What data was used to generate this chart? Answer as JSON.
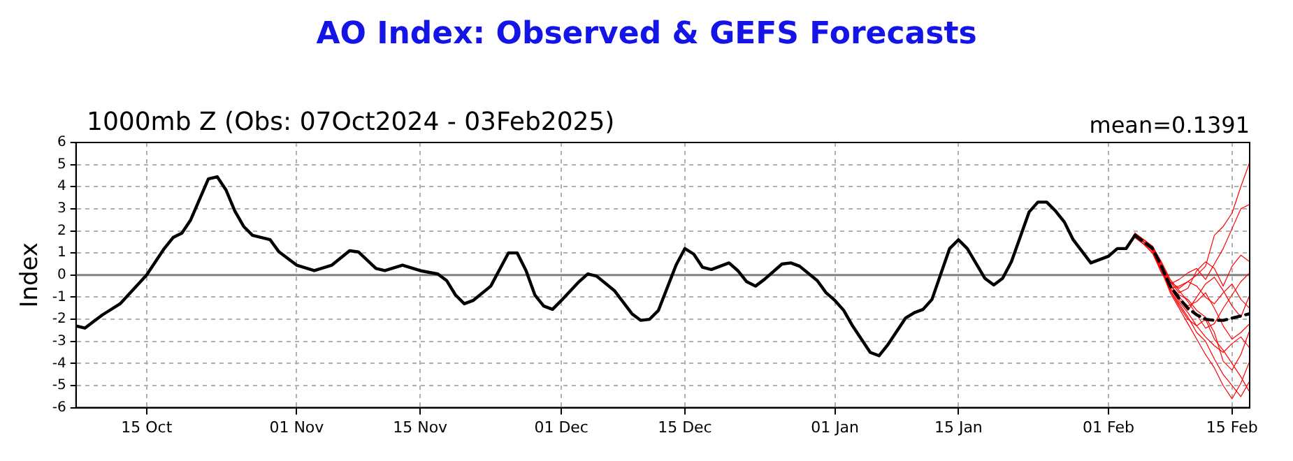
{
  "chart_data": {
    "type": "line",
    "title": "AO Index: Observed & GEFS Forecasts",
    "subtitle": "1000mb Z (Obs: 07Oct2024 - 03Feb2025)",
    "annotations": [
      "mean=0.1391"
    ],
    "ylabel": "Index",
    "xlim": [
      "2024-10-07",
      "2025-02-17"
    ],
    "xticks": [
      {
        "value": "2024-10-15",
        "label": "15 Oct"
      },
      {
        "value": "2024-11-01",
        "label": "01 Nov"
      },
      {
        "value": "2024-11-15",
        "label": "15 Nov"
      },
      {
        "value": "2024-12-01",
        "label": "01 Dec"
      },
      {
        "value": "2024-12-15",
        "label": "15 Dec"
      },
      {
        "value": "2025-01-01",
        "label": "01 Jan"
      },
      {
        "value": "2025-01-15",
        "label": "15 Jan"
      },
      {
        "value": "2025-02-01",
        "label": "01 Feb"
      },
      {
        "value": "2025-02-15",
        "label": "15 Feb"
      }
    ],
    "ylim": [
      -6,
      6
    ],
    "yticks": [
      -6,
      -5,
      -4,
      -3,
      -2,
      -1,
      0,
      1,
      2,
      3,
      4,
      5,
      6
    ],
    "grid": true,
    "legend": false,
    "ref_lines": [
      {
        "axis": "y",
        "value": 0,
        "color": "#808080"
      }
    ],
    "series": [
      {
        "color": "#000000",
        "line_style": "solid",
        "x": [
          "2024-10-07",
          "2024-10-08",
          "2024-10-10",
          "2024-10-12",
          "2024-10-15",
          "2024-10-17",
          "2024-10-18",
          "2024-10-19",
          "2024-10-20",
          "2024-10-22",
          "2024-10-23",
          "2024-10-24",
          "2024-10-25",
          "2024-10-26",
          "2024-10-27",
          "2024-10-29",
          "2024-10-30",
          "2024-11-01",
          "2024-11-03",
          "2024-11-05",
          "2024-11-07",
          "2024-11-08",
          "2024-11-10",
          "2024-11-11",
          "2024-11-13",
          "2024-11-15",
          "2024-11-17",
          "2024-11-18",
          "2024-11-19",
          "2024-11-20",
          "2024-11-21",
          "2024-11-23",
          "2024-11-25",
          "2024-11-26",
          "2024-11-27",
          "2024-11-28",
          "2024-11-29",
          "2024-11-30",
          "2024-12-01",
          "2024-12-03",
          "2024-12-04",
          "2024-12-05",
          "2024-12-07",
          "2024-12-09",
          "2024-12-10",
          "2024-12-11",
          "2024-12-12",
          "2024-12-14",
          "2024-12-15",
          "2024-12-16",
          "2024-12-17",
          "2024-12-18",
          "2024-12-20",
          "2024-12-21",
          "2024-12-22",
          "2024-12-23",
          "2024-12-24",
          "2024-12-26",
          "2024-12-27",
          "2024-12-28",
          "2024-12-30",
          "2024-12-31",
          "2025-01-01",
          "2025-01-02",
          "2025-01-03",
          "2025-01-04",
          "2025-01-05",
          "2025-01-06",
          "2025-01-07",
          "2025-01-09",
          "2025-01-10",
          "2025-01-11",
          "2025-01-12",
          "2025-01-14",
          "2025-01-15",
          "2025-01-16",
          "2025-01-18",
          "2025-01-19",
          "2025-01-20",
          "2025-01-21",
          "2025-01-23",
          "2025-01-24",
          "2025-01-25",
          "2025-01-26",
          "2025-01-27",
          "2025-01-28",
          "2025-01-30",
          "2025-02-01",
          "2025-02-02",
          "2025-02-03",
          "2025-02-04"
        ],
        "values": [
          -2.3,
          -2.4,
          -1.8,
          -1.3,
          0,
          1.2,
          1.7,
          1.9,
          2.5,
          4.35,
          4.45,
          3.85,
          2.9,
          2.2,
          1.8,
          1.6,
          1.05,
          0.45,
          0.2,
          0.45,
          1.1,
          1.05,
          0.3,
          0.2,
          0.45,
          0.2,
          0.05,
          -0.25,
          -0.9,
          -1.3,
          -1.15,
          -0.5,
          1.0,
          1.0,
          0.2,
          -0.9,
          -1.4,
          -1.55,
          -1.15,
          -0.3,
          0.05,
          -0.05,
          -0.7,
          -1.75,
          -2.05,
          -2.0,
          -1.6,
          0.45,
          1.2,
          0.95,
          0.35,
          0.25,
          0.55,
          0.2,
          -0.3,
          -0.5,
          -0.2,
          0.5,
          0.55,
          0.4,
          -0.25,
          -0.8,
          -1.15,
          -1.6,
          -2.3,
          -2.9,
          -3.5,
          -3.65,
          -3.15,
          -1.95,
          -1.7,
          -1.55,
          -1.1,
          1.2,
          1.6,
          1.2,
          -0.15,
          -0.45,
          -0.15,
          0.6,
          2.85,
          3.3,
          3.3,
          2.9,
          2.4,
          1.6,
          0.55,
          0.85,
          1.2,
          1.2,
          1.8
        ]
      },
      {
        "color": "#000000",
        "line_style": "dashed",
        "x": [
          "2025-02-04",
          "2025-02-05",
          "2025-02-06",
          "2025-02-07",
          "2025-02-08",
          "2025-02-09",
          "2025-02-10",
          "2025-02-11",
          "2025-02-12",
          "2025-02-13",
          "2025-02-14",
          "2025-02-15",
          "2025-02-16",
          "2025-02-17"
        ],
        "values": [
          1.8,
          1.5,
          1.2,
          0.4,
          -0.5,
          -1.05,
          -1.5,
          -1.8,
          -2.0,
          -2.05,
          -2.05,
          -1.95,
          -1.85,
          -1.75
        ]
      },
      {
        "color": "#ff0000",
        "line_style": "solid",
        "x": [
          "2025-02-04",
          "2025-02-05",
          "2025-02-06",
          "2025-02-07",
          "2025-02-08",
          "2025-02-09",
          "2025-02-10",
          "2025-02-11",
          "2025-02-12",
          "2025-02-13",
          "2025-02-14",
          "2025-02-15",
          "2025-02-16",
          "2025-02-17"
        ],
        "values": [
          1.8,
          1.5,
          1.1,
          0.2,
          -0.6,
          -0.5,
          -0.3,
          0.0,
          0.4,
          1.8,
          2.2,
          2.8,
          4.0,
          5.1
        ]
      },
      {
        "color": "#ff0000",
        "line_style": "solid",
        "x": [
          "2025-02-04",
          "2025-02-05",
          "2025-02-06",
          "2025-02-07",
          "2025-02-08",
          "2025-02-09",
          "2025-02-10",
          "2025-02-11",
          "2025-02-12",
          "2025-02-13",
          "2025-02-14",
          "2025-02-15",
          "2025-02-16",
          "2025-02-17"
        ],
        "values": [
          1.7,
          1.4,
          1.0,
          0.1,
          -0.4,
          -0.2,
          0.1,
          0.3,
          -0.2,
          0.5,
          1.2,
          2.1,
          3.0,
          3.2
        ]
      },
      {
        "color": "#ff0000",
        "line_style": "solid",
        "x": [
          "2025-02-04",
          "2025-02-05",
          "2025-02-06",
          "2025-02-07",
          "2025-02-08",
          "2025-02-09",
          "2025-02-10",
          "2025-02-11",
          "2025-02-12",
          "2025-02-13",
          "2025-02-14",
          "2025-02-15",
          "2025-02-16",
          "2025-02-17"
        ],
        "values": [
          1.8,
          1.6,
          1.3,
          0.5,
          -0.3,
          -0.8,
          -0.6,
          0.2,
          0.6,
          0.3,
          -0.5,
          0.4,
          0.9,
          0.6
        ]
      },
      {
        "color": "#ff0000",
        "line_style": "solid",
        "x": [
          "2025-02-04",
          "2025-02-05",
          "2025-02-06",
          "2025-02-07",
          "2025-02-08",
          "2025-02-09",
          "2025-02-10",
          "2025-02-11",
          "2025-02-12",
          "2025-02-13",
          "2025-02-14",
          "2025-02-15",
          "2025-02-16",
          "2025-02-17"
        ],
        "values": [
          1.9,
          1.6,
          1.2,
          0.3,
          -0.7,
          -1.3,
          -1.9,
          -2.6,
          -3.0,
          -3.8,
          -4.5,
          -5.0,
          -5.5,
          -4.8
        ]
      },
      {
        "color": "#ff0000",
        "line_style": "solid",
        "x": [
          "2025-02-04",
          "2025-02-05",
          "2025-02-06",
          "2025-02-07",
          "2025-02-08",
          "2025-02-09",
          "2025-02-10",
          "2025-02-11",
          "2025-02-12",
          "2025-02-13",
          "2025-02-14",
          "2025-02-15",
          "2025-02-16",
          "2025-02-17"
        ],
        "values": [
          1.7,
          1.4,
          1.0,
          0.2,
          -0.8,
          -1.5,
          -2.2,
          -2.9,
          -3.6,
          -4.2,
          -5.0,
          -5.6,
          -4.9,
          -3.9
        ]
      },
      {
        "color": "#ff0000",
        "line_style": "solid",
        "x": [
          "2025-02-04",
          "2025-02-05",
          "2025-02-06",
          "2025-02-07",
          "2025-02-08",
          "2025-02-09",
          "2025-02-10",
          "2025-02-11",
          "2025-02-12",
          "2025-02-13",
          "2025-02-14",
          "2025-02-15",
          "2025-02-16",
          "2025-02-17"
        ],
        "values": [
          1.8,
          1.5,
          1.2,
          0.5,
          -0.4,
          -1.0,
          -1.4,
          -1.2,
          -0.8,
          -1.5,
          -2.3,
          -2.9,
          -2.6,
          -2.2
        ]
      },
      {
        "color": "#ff0000",
        "line_style": "solid",
        "x": [
          "2025-02-04",
          "2025-02-05",
          "2025-02-06",
          "2025-02-07",
          "2025-02-08",
          "2025-02-09",
          "2025-02-10",
          "2025-02-11",
          "2025-02-12",
          "2025-02-13",
          "2025-02-14",
          "2025-02-15",
          "2025-02-16",
          "2025-02-17"
        ],
        "values": [
          1.8,
          1.6,
          1.3,
          0.6,
          -0.2,
          -0.7,
          -1.2,
          -1.8,
          -2.4,
          -2.2,
          -1.5,
          -0.9,
          -0.3,
          0.1
        ]
      },
      {
        "color": "#ff0000",
        "line_style": "solid",
        "x": [
          "2025-02-04",
          "2025-02-05",
          "2025-02-06",
          "2025-02-07",
          "2025-02-08",
          "2025-02-09",
          "2025-02-10",
          "2025-02-11",
          "2025-02-12",
          "2025-02-13",
          "2025-02-14",
          "2025-02-15",
          "2025-02-16",
          "2025-02-17"
        ],
        "values": [
          1.7,
          1.5,
          1.1,
          0.3,
          -0.6,
          -1.2,
          -1.7,
          -2.3,
          -2.8,
          -3.2,
          -3.5,
          -3.1,
          -2.8,
          -3.3
        ]
      },
      {
        "color": "#ff0000",
        "line_style": "solid",
        "x": [
          "2025-02-04",
          "2025-02-05",
          "2025-02-06",
          "2025-02-07",
          "2025-02-08",
          "2025-02-09",
          "2025-02-10",
          "2025-02-11",
          "2025-02-12",
          "2025-02-13",
          "2025-02-14",
          "2025-02-15",
          "2025-02-16",
          "2025-02-17"
        ],
        "values": [
          1.8,
          1.5,
          1.2,
          0.4,
          -0.5,
          -0.9,
          -1.1,
          -1.6,
          -1.9,
          -2.6,
          -3.9,
          -4.3,
          -3.6,
          -2.5
        ]
      },
      {
        "color": "#ff0000",
        "line_style": "solid",
        "x": [
          "2025-02-04",
          "2025-02-05",
          "2025-02-06",
          "2025-02-07",
          "2025-02-08",
          "2025-02-09",
          "2025-02-10",
          "2025-02-11",
          "2025-02-12",
          "2025-02-13",
          "2025-02-14",
          "2025-02-15",
          "2025-02-16",
          "2025-02-17"
        ],
        "values": [
          1.8,
          1.5,
          1.1,
          0.3,
          -0.6,
          -1.1,
          -1.6,
          -1.0,
          -0.4,
          -0.1,
          -0.7,
          -1.4,
          -1.9,
          -0.9
        ]
      },
      {
        "color": "#ff0000",
        "line_style": "solid",
        "x": [
          "2025-02-04",
          "2025-02-05",
          "2025-02-06",
          "2025-02-07",
          "2025-02-08",
          "2025-02-09",
          "2025-02-10",
          "2025-02-11",
          "2025-02-12",
          "2025-02-13",
          "2025-02-14",
          "2025-02-15",
          "2025-02-16",
          "2025-02-17"
        ],
        "values": [
          1.9,
          1.6,
          1.3,
          0.5,
          -0.3,
          -0.6,
          -0.3,
          -0.5,
          -1.0,
          -1.3,
          -0.8,
          -0.4,
          -1.1,
          -1.5
        ]
      },
      {
        "color": "#ff0000",
        "line_style": "solid",
        "x": [
          "2025-02-04",
          "2025-02-05",
          "2025-02-06",
          "2025-02-07",
          "2025-02-08",
          "2025-02-09",
          "2025-02-10",
          "2025-02-11",
          "2025-02-12",
          "2025-02-13",
          "2025-02-14",
          "2025-02-15",
          "2025-02-16",
          "2025-02-17"
        ],
        "values": [
          1.7,
          1.4,
          1.0,
          0.2,
          -0.7,
          -1.4,
          -2.0,
          -2.3,
          -2.0,
          -2.9,
          -3.4,
          -4.0,
          -4.6,
          -5.3
        ]
      }
    ]
  }
}
